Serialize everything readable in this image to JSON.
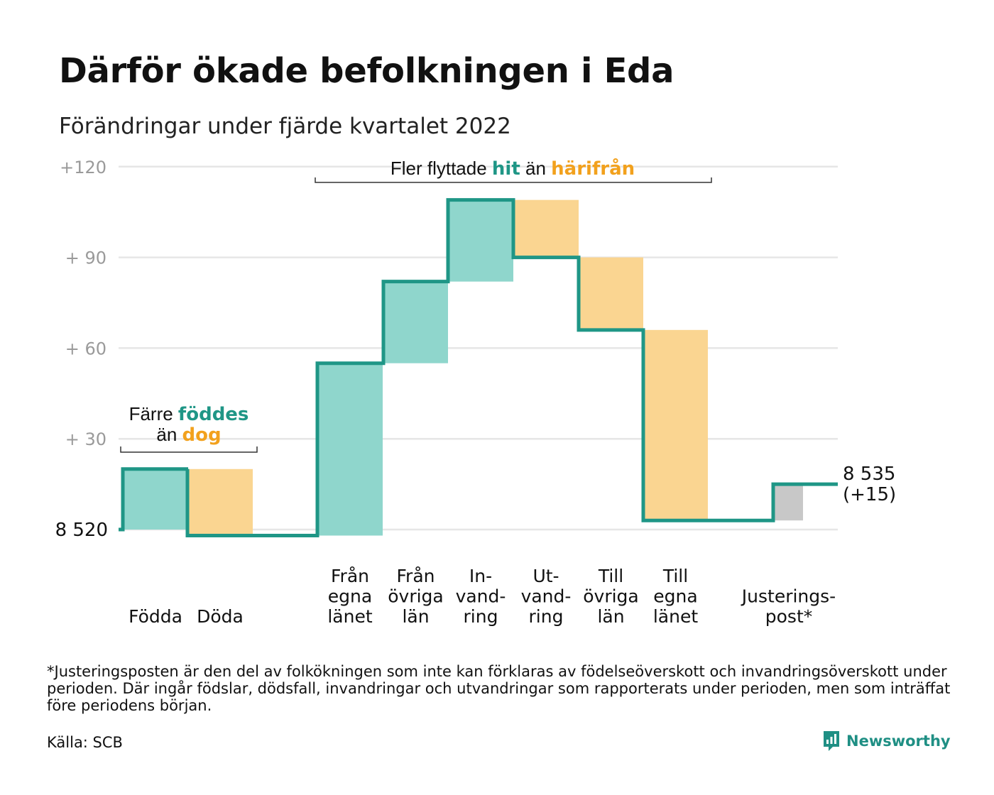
{
  "title": "Därför ökade befolkningen i Eda",
  "subtitle": "Förändringar under fjärde kvartalet 2022",
  "chart_data": {
    "type": "waterfall",
    "start_value": 8520,
    "start_label": "8 520",
    "end_value_label": "8 535",
    "end_change_label": "(+15)",
    "y_axis": {
      "ticks": [
        {
          "value": 30,
          "label": "+ 30"
        },
        {
          "value": 60,
          "label": "+ 60"
        },
        {
          "value": 90,
          "label": "+ 90"
        },
        {
          "value": 120,
          "label": "+120"
        }
      ],
      "range": [
        -7,
        122
      ],
      "grid": true
    },
    "bars": [
      {
        "label_lines": [
          "Födda"
        ],
        "change": 20,
        "kind": "plus"
      },
      {
        "label_lines": [
          "Döda"
        ],
        "change": -22,
        "kind": "minus"
      },
      {
        "label_lines": [
          "Från",
          "egna",
          "länet"
        ],
        "change": 57,
        "kind": "plus"
      },
      {
        "label_lines": [
          "Från",
          "övriga",
          "län"
        ],
        "change": 27,
        "kind": "plus"
      },
      {
        "label_lines": [
          "In-",
          "vand-",
          "ring"
        ],
        "change": 27,
        "kind": "plus"
      },
      {
        "label_lines": [
          "Ut-",
          "vand-",
          "ring"
        ],
        "change": -19,
        "kind": "minus"
      },
      {
        "label_lines": [
          "Till",
          "övriga",
          "län"
        ],
        "change": -24,
        "kind": "minus"
      },
      {
        "label_lines": [
          "Till",
          "egna",
          "länet"
        ],
        "change": -63,
        "kind": "minus"
      },
      {
        "label_lines": [
          "Justerings-",
          "post*"
        ],
        "change": 12,
        "kind": "adjust"
      }
    ],
    "annotations": {
      "births": {
        "prefix": "Färre ",
        "highlight1": "föddes",
        "middle": "än ",
        "highlight2": "dog"
      },
      "migration": {
        "prefix": "Fler flyttade ",
        "highlight1": "hit",
        "middle": " än ",
        "highlight2": "härifrån"
      }
    },
    "colors": {
      "line": "#1f9686",
      "plus": "#8fd6cc",
      "minus": "#fad591",
      "adjust": "#c8c8c8",
      "highlight_plus": "#1f9686",
      "highlight_minus": "#f2a11d",
      "grid": "#e6e6e6",
      "tick": "#9a9a9a"
    }
  },
  "footnote": "*Justeringsposten är den del av folkökningen som inte kan förklaras av födelseöverskott och invandringsöverskott under perioden. Där ingår födslar, dödsfall, invandringar och utvandringar som rapporterats under perioden, men som inträffat före periodens början.",
  "source": "Källa: SCB",
  "brand": {
    "name": "Newsworthy",
    "icon": "newsworthy-logo-icon"
  }
}
